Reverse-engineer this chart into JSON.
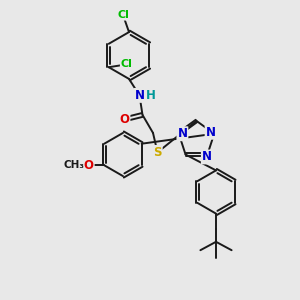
{
  "background_color": "#e8e8e8",
  "bond_color": "#1a1a1a",
  "atom_colors": {
    "N": "#0000cc",
    "O": "#dd0000",
    "S": "#ccaa00",
    "Cl": "#00bb00",
    "H": "#009999",
    "C": "#1a1a1a"
  },
  "figsize": [
    3.0,
    3.0
  ],
  "dpi": 100,
  "xlim": [
    0,
    10
  ],
  "ylim": [
    0,
    10
  ]
}
